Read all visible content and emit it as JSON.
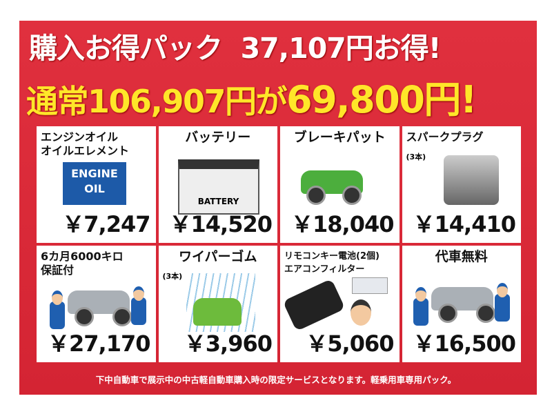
{
  "header": {
    "title": "購入お得パック",
    "savings": "37,107円お得!",
    "regular_prefix": "通常",
    "regular_price": "106,907円",
    "connector": "が",
    "sale_price": "69,800円!"
  },
  "items": [
    {
      "label": "エンジンオイル\nオイルエレメント",
      "note": "",
      "price": "￥7,247",
      "icon": "engine-oil-can",
      "icon_text": "ENGINE\nOIL"
    },
    {
      "label": "バッテリー",
      "note": "",
      "price": "￥14,520",
      "icon": "car-battery",
      "icon_text": "BATTERY"
    },
    {
      "label": "ブレーキパット",
      "note": "",
      "price": "￥18,040",
      "icon": "braking-car"
    },
    {
      "label": "スパークプラグ",
      "note": "(3本)",
      "price": "￥14,410",
      "icon": "engine-block"
    },
    {
      "label": "6カ月6000キロ\n保証付",
      "note": "",
      "price": "￥27,170",
      "icon": "mechanics-repairing-car"
    },
    {
      "label": "ワイパーゴム",
      "note": "(3本)",
      "price": "￥3,960",
      "icon": "car-in-rain"
    },
    {
      "label": "リモコンキー電池(2個)\nエアコンフィルター",
      "note": "",
      "price": "￥5,060",
      "icon": "remote-key-and-aircon-filter"
    },
    {
      "label": "代車無料",
      "note": "",
      "price": "￥16,500",
      "icon": "mechanics-repairing-car"
    }
  ],
  "footer": "下中自動車で展示中の中古軽自動車購入時の限定サービスとなります。軽乗用車専用パック。",
  "colors": {
    "background": "#d42433",
    "headline": "#ffffff",
    "sale": "#ffe629"
  }
}
